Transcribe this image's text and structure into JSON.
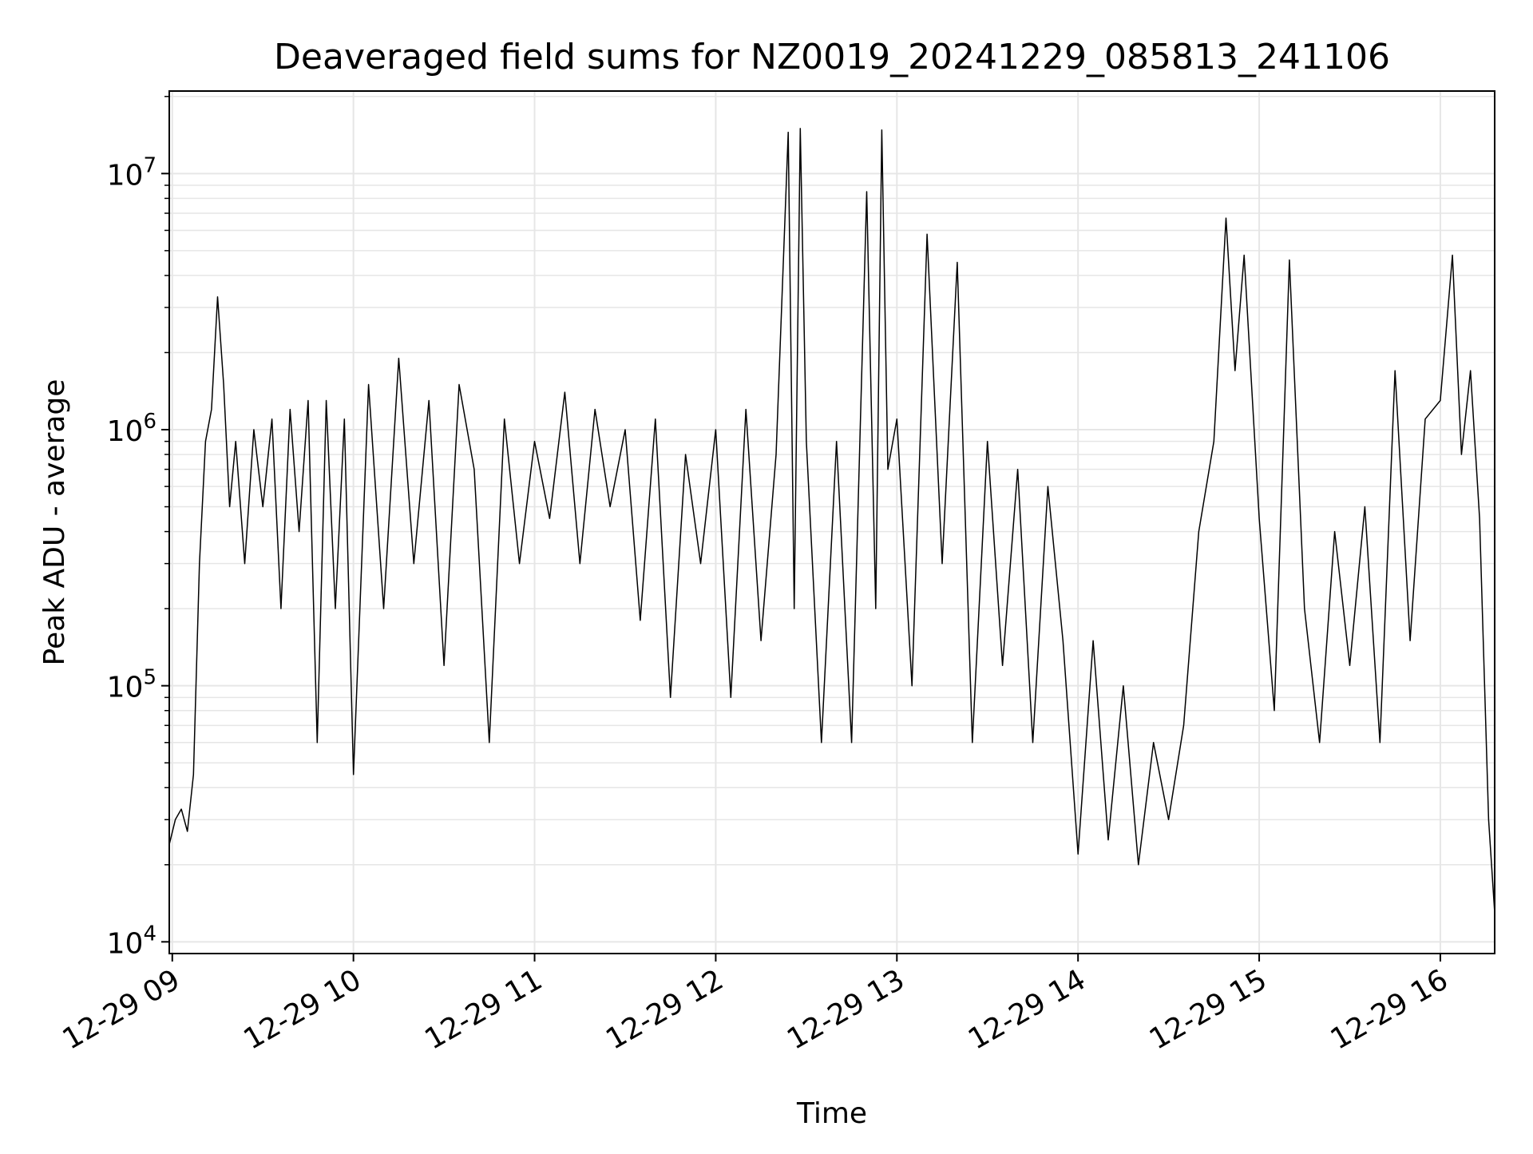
{
  "chart_data": {
    "type": "line",
    "title": "Deaveraged field sums for NZ0019_20241229_085813_241106",
    "xlabel": "Time",
    "ylabel": "Peak ADU - average",
    "yscale": "log",
    "xlim": [
      "12-29 08:59",
      "12-29 16:18"
    ],
    "ylim": [
      9000,
      21000000
    ],
    "grid": true,
    "line_color": "#000000",
    "x_ticks": [
      {
        "value": "12-29 09",
        "label": "12-29 09"
      },
      {
        "value": "12-29 10",
        "label": "12-29 10"
      },
      {
        "value": "12-29 11",
        "label": "12-29 11"
      },
      {
        "value": "12-29 12",
        "label": "12-29 12"
      },
      {
        "value": "12-29 13",
        "label": "12-29 13"
      },
      {
        "value": "12-29 14",
        "label": "12-29 14"
      },
      {
        "value": "12-29 15",
        "label": "12-29 15"
      },
      {
        "value": "12-29 16",
        "label": "12-29 16"
      }
    ],
    "y_ticks": [
      {
        "value": 10000,
        "base": "10",
        "exp": "4"
      },
      {
        "value": 100000,
        "base": "10",
        "exp": "5"
      },
      {
        "value": 1000000,
        "base": "10",
        "exp": "6"
      },
      {
        "value": 10000000,
        "base": "10",
        "exp": "7"
      }
    ],
    "series": [
      {
        "x": [
          "12-29 08:59",
          "12-29 09:01",
          "12-29 09:03",
          "12-29 09:05",
          "12-29 09:07",
          "12-29 09:09",
          "12-29 09:11",
          "12-29 09:13",
          "12-29 09:15",
          "12-29 09:17",
          "12-29 09:19",
          "12-29 09:21",
          "12-29 09:24",
          "12-29 09:27",
          "12-29 09:30",
          "12-29 09:33",
          "12-29 09:36",
          "12-29 09:39",
          "12-29 09:42",
          "12-29 09:45",
          "12-29 09:48",
          "12-29 09:51",
          "12-29 09:54",
          "12-29 09:57",
          "12-29 10:00",
          "12-29 10:05",
          "12-29 10:10",
          "12-29 10:15",
          "12-29 10:20",
          "12-29 10:25",
          "12-29 10:30",
          "12-29 10:35",
          "12-29 10:40",
          "12-29 10:45",
          "12-29 10:50",
          "12-29 10:55",
          "12-29 11:00",
          "12-29 11:05",
          "12-29 11:10",
          "12-29 11:15",
          "12-29 11:20",
          "12-29 11:25",
          "12-29 11:30",
          "12-29 11:35",
          "12-29 11:40",
          "12-29 11:45",
          "12-29 11:50",
          "12-29 11:55",
          "12-29 12:00",
          "12-29 12:05",
          "12-29 12:10",
          "12-29 12:15",
          "12-29 12:20",
          "12-29 12:24",
          "12-29 12:26",
          "12-29 12:28",
          "12-29 12:30",
          "12-29 12:35",
          "12-29 12:40",
          "12-29 12:45",
          "12-29 12:50",
          "12-29 12:53",
          "12-29 12:55",
          "12-29 12:57",
          "12-29 13:00",
          "12-29 13:05",
          "12-29 13:10",
          "12-29 13:15",
          "12-29 13:20",
          "12-29 13:25",
          "12-29 13:30",
          "12-29 13:35",
          "12-29 13:40",
          "12-29 13:45",
          "12-29 13:50",
          "12-29 13:55",
          "12-29 14:00",
          "12-29 14:05",
          "12-29 14:10",
          "12-29 14:15",
          "12-29 14:20",
          "12-29 14:25",
          "12-29 14:30",
          "12-29 14:35",
          "12-29 14:40",
          "12-29 14:45",
          "12-29 14:49",
          "12-29 14:52",
          "12-29 14:55",
          "12-29 15:00",
          "12-29 15:05",
          "12-29 15:10",
          "12-29 15:15",
          "12-29 15:20",
          "12-29 15:25",
          "12-29 15:30",
          "12-29 15:35",
          "12-29 15:40",
          "12-29 15:45",
          "12-29 15:50",
          "12-29 15:55",
          "12-29 16:00",
          "12-29 16:04",
          "12-29 16:07",
          "12-29 16:10",
          "12-29 16:13",
          "12-29 16:16",
          "12-29 16:18"
        ],
        "y": [
          24000,
          30000,
          33000,
          27000,
          45000,
          300000,
          900000,
          1200000,
          3300000,
          1500000,
          500000,
          900000,
          300000,
          1000000,
          500000,
          1100000,
          200000,
          1200000,
          400000,
          1300000,
          60000,
          1300000,
          200000,
          1100000,
          45000,
          1500000,
          200000,
          1900000,
          300000,
          1300000,
          120000,
          1500000,
          700000,
          60000,
          1100000,
          300000,
          900000,
          450000,
          1400000,
          300000,
          1200000,
          500000,
          1000000,
          180000,
          1100000,
          90000,
          800000,
          300000,
          1000000,
          90000,
          1200000,
          150000,
          800000,
          14500000,
          200000,
          15000000,
          900000,
          60000,
          900000,
          60000,
          8500000,
          200000,
          14800000,
          700000,
          1100000,
          100000,
          5800000,
          300000,
          4500000,
          60000,
          900000,
          120000,
          700000,
          60000,
          600000,
          150000,
          22000,
          150000,
          25000,
          100000,
          20000,
          60000,
          30000,
          70000,
          400000,
          900000,
          6700000,
          1700000,
          4800000,
          450000,
          80000,
          4600000,
          200000,
          60000,
          400000,
          120000,
          500000,
          60000,
          1700000,
          150000,
          1100000,
          1300000,
          4800000,
          800000,
          1700000,
          450000,
          30000,
          13000
        ]
      }
    ]
  }
}
